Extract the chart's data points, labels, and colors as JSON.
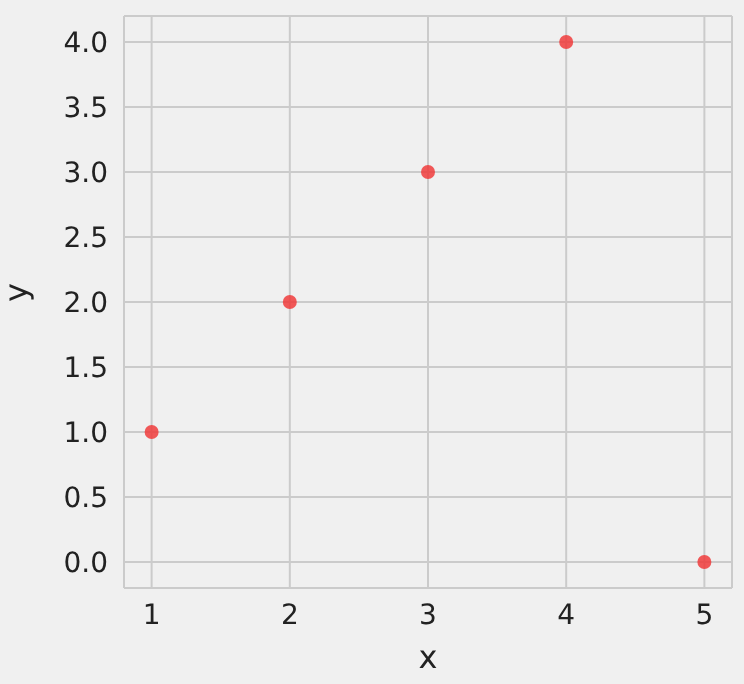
{
  "chart_data": {
    "type": "scatter",
    "xlabel": "x",
    "ylabel": "y",
    "x": [
      1,
      2,
      3,
      4,
      5
    ],
    "series": [
      {
        "color": "#f03c3c",
        "values": [
          1,
          2,
          3,
          4,
          0
        ]
      }
    ],
    "xlim": [
      0.8,
      5.2
    ],
    "ylim": [
      -0.2,
      4.2
    ],
    "xticks": [
      1,
      2,
      3,
      4,
      5
    ],
    "yticks": [
      {
        "value": 0,
        "label": "0.0"
      },
      {
        "value": 0.5,
        "label": "0.5"
      },
      {
        "value": 1,
        "label": "1.0"
      },
      {
        "value": 1.5,
        "label": "1.5"
      },
      {
        "value": 2,
        "label": "2.0"
      },
      {
        "value": 2.5,
        "label": "2.5"
      },
      {
        "value": 3,
        "label": "3.0"
      },
      {
        "value": 3.5,
        "label": "3.5"
      },
      {
        "value": 4,
        "label": "4.0"
      }
    ],
    "grid": true,
    "marker": "circle",
    "legend": false
  }
}
